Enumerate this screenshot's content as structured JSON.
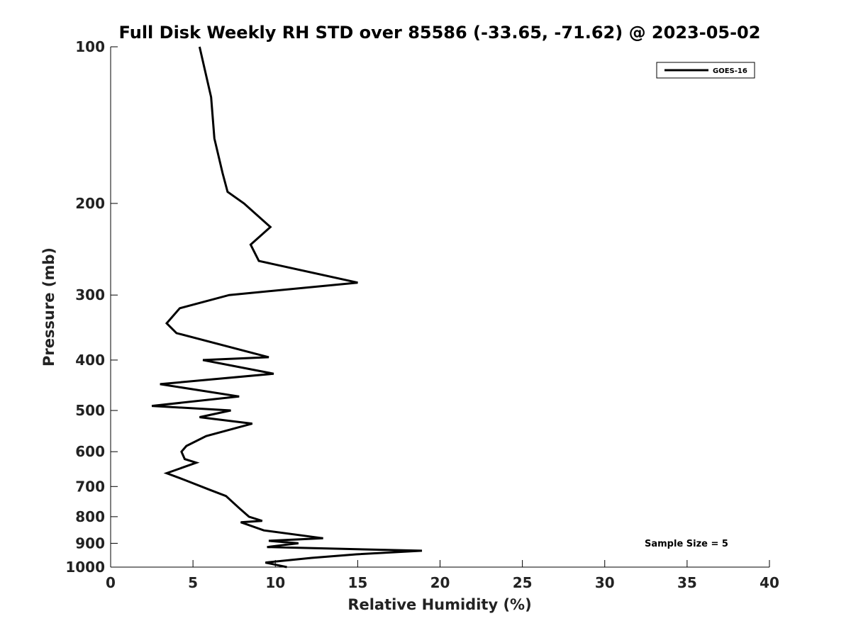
{
  "chart_data": {
    "type": "line",
    "title": "Full Disk Weekly RH STD over 85586 (-33.65, -71.62) @ 2023-05-02",
    "xlabel": "Relative Humidity (%)",
    "ylabel": "Pressure (mb)",
    "xlim": [
      0,
      40
    ],
    "ylim": [
      1000,
      100
    ],
    "yscale": "log",
    "y_reversed": true,
    "xticks": [
      0,
      5,
      10,
      15,
      20,
      25,
      30,
      35,
      40
    ],
    "yticks": [
      100,
      200,
      300,
      400,
      500,
      600,
      700,
      800,
      900,
      1000
    ],
    "grid": false,
    "legend": {
      "location": "top-right",
      "entries": [
        "GOES-16"
      ]
    },
    "annotation": "Sample Size = 5",
    "series": [
      {
        "name": "GOES-16",
        "color": "#000000",
        "points": [
          [
            5.4,
            100
          ],
          [
            6.1,
            125
          ],
          [
            6.3,
            150
          ],
          [
            6.8,
            175
          ],
          [
            7.1,
            190
          ],
          [
            8.1,
            200
          ],
          [
            9.7,
            222
          ],
          [
            8.5,
            240
          ],
          [
            9.0,
            258
          ],
          [
            15.0,
            284
          ],
          [
            7.2,
            300
          ],
          [
            4.2,
            318
          ],
          [
            3.4,
            340
          ],
          [
            4.0,
            355
          ],
          [
            9.6,
            395
          ],
          [
            5.6,
            400
          ],
          [
            9.9,
            425
          ],
          [
            3.0,
            445
          ],
          [
            7.8,
            470
          ],
          [
            2.5,
            490
          ],
          [
            7.3,
            500
          ],
          [
            5.4,
            515
          ],
          [
            8.6,
            530
          ],
          [
            5.8,
            560
          ],
          [
            4.6,
            585
          ],
          [
            4.3,
            600
          ],
          [
            4.5,
            620
          ],
          [
            5.2,
            630
          ],
          [
            3.4,
            660
          ],
          [
            4.5,
            680
          ],
          [
            6.0,
            710
          ],
          [
            7.0,
            730
          ],
          [
            7.8,
            770
          ],
          [
            8.4,
            800
          ],
          [
            9.2,
            815
          ],
          [
            7.9,
            820
          ],
          [
            9.3,
            850
          ],
          [
            12.9,
            880
          ],
          [
            9.6,
            890
          ],
          [
            11.4,
            900
          ],
          [
            9.5,
            915
          ],
          [
            18.9,
            930
          ],
          [
            14.9,
            945
          ],
          [
            12.2,
            960
          ],
          [
            9.4,
            980
          ],
          [
            10.7,
            1000
          ]
        ]
      }
    ]
  }
}
